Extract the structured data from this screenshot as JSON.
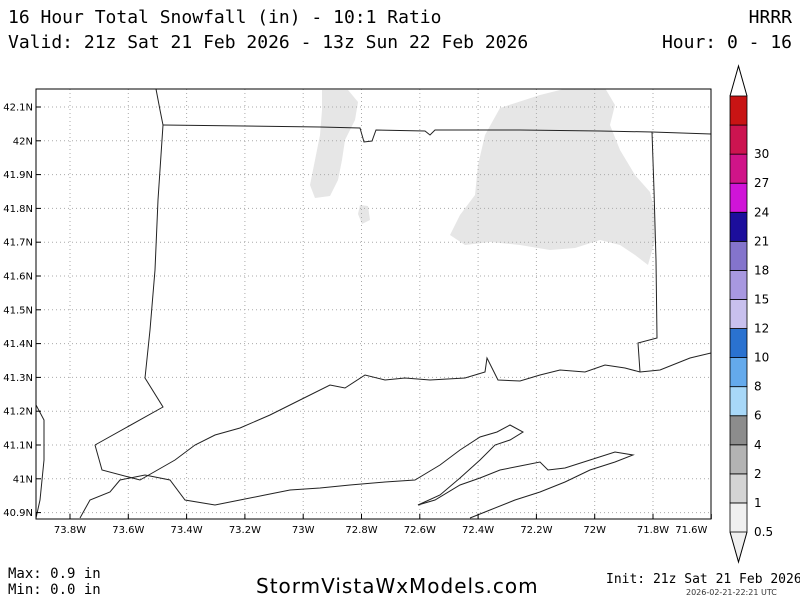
{
  "header": {
    "title": "16 Hour Total Snowfall (in) - 10:1 Ratio",
    "model": "HRRR",
    "valid": "Valid: 21z Sat 21 Feb 2026 - 13z Sun 22 Feb 2026",
    "hours": "Hour: 0 - 16"
  },
  "map": {
    "lat_labels": [
      "42.1N",
      "42N",
      "41.9N",
      "41.8N",
      "41.7N",
      "41.6N",
      "41.5N",
      "41.4N",
      "41.3N",
      "41.2N",
      "41.1N",
      "41N",
      "40.9N"
    ],
    "lon_labels": [
      "73.8W",
      "73.6W",
      "73.4W",
      "73.2W",
      "73W",
      "72.8W",
      "72.6W",
      "72.4W",
      "72.2W",
      "72W",
      "71.8W",
      "71.6W"
    ],
    "snow_color": "#e6e6e6"
  },
  "colorbar": {
    "levels": [
      "0.5",
      "1",
      "2",
      "4",
      "6",
      "8",
      "10",
      "12",
      "15",
      "18",
      "21",
      "24",
      "27",
      "30"
    ],
    "colors": [
      "#f0f0f0",
      "#d4d4d4",
      "#b3b3b3",
      "#8c8c8c",
      "#a8d8f8",
      "#64aaec",
      "#2a72d0",
      "#c8c0ee",
      "#a898e0",
      "#8474cc",
      "#1c0e9c",
      "#d014d8",
      "#d01488",
      "#cc1450",
      "#c81414"
    ]
  },
  "footer": {
    "max": "Max: 0.9 in",
    "min": "Min: 0.0 in",
    "brand": "StormVistaWxModels.com",
    "init": "Init: 21z Sat 21 Feb 2026",
    "stamp": "2026-02-21-22:21 UTC"
  }
}
